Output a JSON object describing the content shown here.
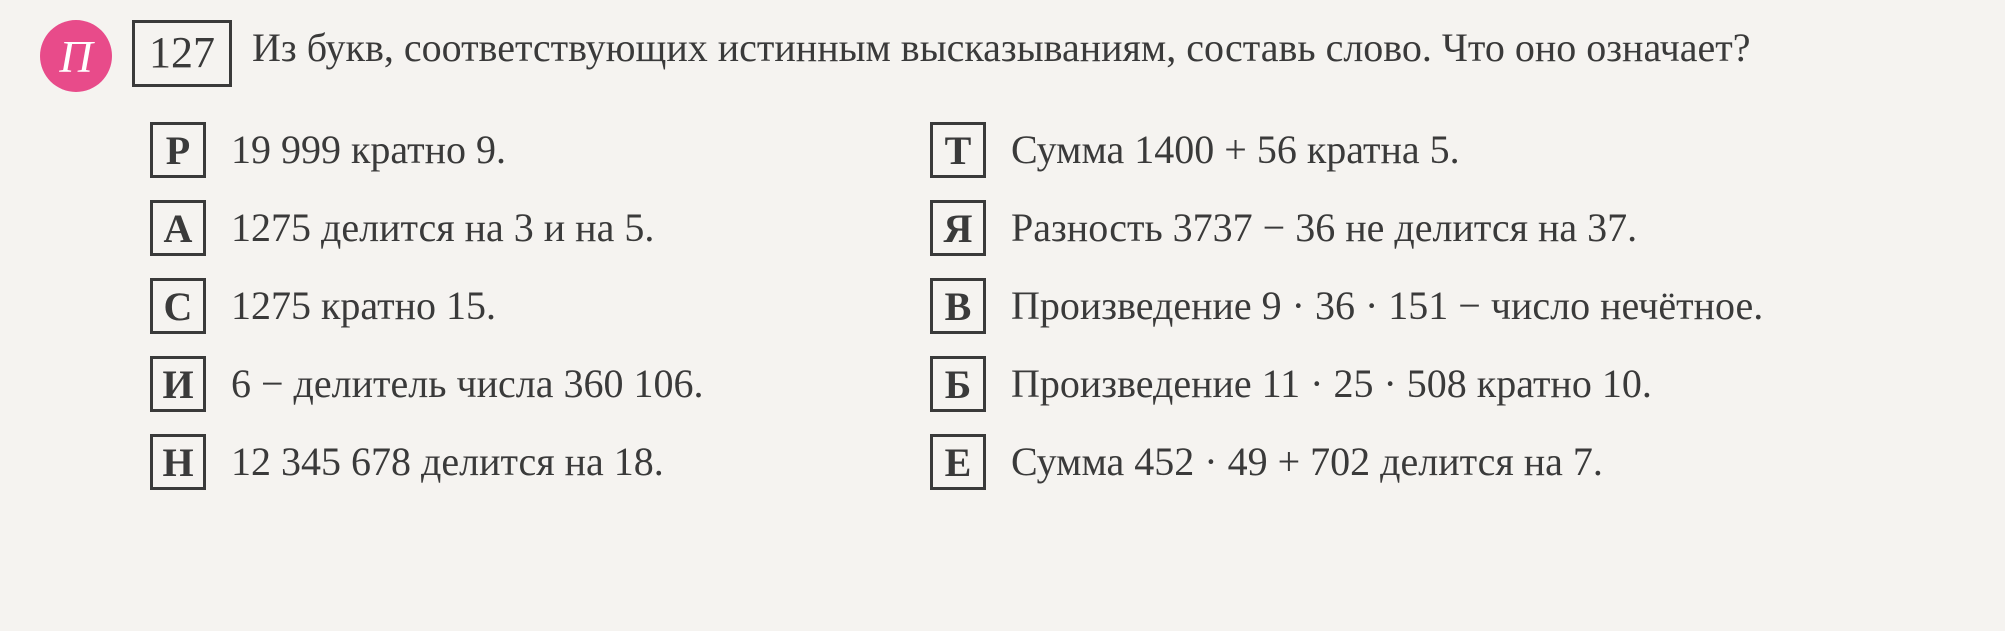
{
  "header": {
    "badge": "П",
    "problem_number": "127",
    "problem_text": "Из букв, соответствующих истинным высказываниям, составь слово. Что оно означает?"
  },
  "columns": {
    "left": [
      {
        "letter": "Р",
        "text": "19 999 кратно 9."
      },
      {
        "letter": "А",
        "text": "1275 делится на 3 и на 5."
      },
      {
        "letter": "С",
        "text": "1275 кратно 15."
      },
      {
        "letter": "И",
        "text": "6 − делитель числа 360 106."
      },
      {
        "letter": "Н",
        "text": "12 345 678 делится на 18."
      }
    ],
    "right": [
      {
        "letter": "Т",
        "text": "Сумма 1400 + 56 кратна 5."
      },
      {
        "letter": "Я",
        "text": "Разность 3737 − 36 не делится на 37."
      },
      {
        "letter": "В",
        "text": "Произведение 9 · 36 · 151 − число нечётное."
      },
      {
        "letter": "Б",
        "text": "Произведение 11 · 25 · 508 кратно 10."
      },
      {
        "letter": "Е",
        "text": "Сумма 452 · 49 + 702 делится на 7."
      }
    ]
  },
  "styling": {
    "background_color": "#f5f3f0",
    "text_color": "#3a3a3a",
    "badge_color": "#e84b8a",
    "badge_text_color": "#ffffff",
    "border_color": "#3a3a3a",
    "font_family": "Georgia, Times New Roman, serif",
    "problem_fontsize": 40,
    "letter_fontsize": 40,
    "option_fontsize": 40,
    "badge_fontsize": 46
  }
}
